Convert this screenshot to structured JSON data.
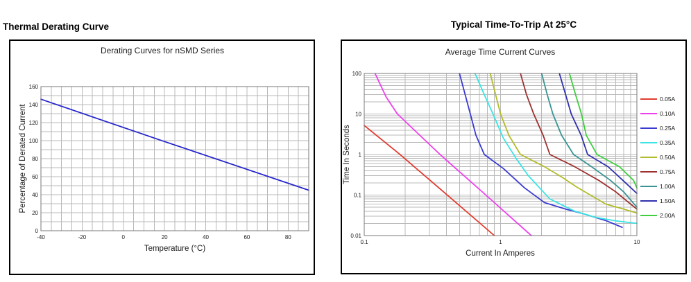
{
  "headings": {
    "left": "Thermal Derating Curve",
    "right": "Typical Time-To-Trip At 25°C"
  },
  "chart_data": [
    {
      "type": "line",
      "title": "Derating Curves for nSMD Series",
      "xlabel": "Temperature (°C)",
      "ylabel": "Percentage of Derated Current",
      "xscale": "linear",
      "yscale": "linear",
      "xlim": [
        -40,
        90
      ],
      "ylim": [
        0,
        160
      ],
      "xticks": [
        -40,
        -20,
        0,
        20,
        40,
        60,
        80
      ],
      "yticks": [
        0,
        20,
        40,
        60,
        80,
        100,
        120,
        140,
        160
      ],
      "x_minor_step": 5,
      "y_minor_step": 10,
      "grid": true,
      "grid_color": "#b8b8b8",
      "frame_color": "#7a7a7a",
      "legend_position": "none",
      "series": [
        {
          "name": "derating",
          "color": "#2525cc",
          "points": [
            [
              -40,
              146
            ],
            [
              20,
              99
            ],
            [
              90,
              45
            ]
          ]
        }
      ]
    },
    {
      "type": "line",
      "title": "Average Time Current Curves",
      "xlabel": "Current In Amperes",
      "ylabel": "Time In Seconds",
      "xscale": "log",
      "yscale": "log",
      "xlim": [
        0.1,
        10
      ],
      "ylim": [
        0.01,
        100
      ],
      "xticks": [
        0.1,
        1,
        10
      ],
      "yticks": [
        100,
        10,
        1,
        0.1,
        0.01
      ],
      "grid": true,
      "grid_color": "#b8b8b8",
      "frame_color": "#7a7a7a",
      "legend_position": "right",
      "series": [
        {
          "name": "0.05A",
          "color": "#e23b2e",
          "points": [
            [
              0.1,
              5.2
            ],
            [
              0.18,
              1.05
            ],
            [
              0.4,
              0.105
            ],
            [
              0.9,
              0.01
            ]
          ]
        },
        {
          "name": "0.10A",
          "color": "#ee3fee",
          "points": [
            [
              0.12,
              100
            ],
            [
              0.145,
              26
            ],
            [
              0.175,
              10
            ],
            [
              0.36,
              1
            ],
            [
              0.78,
              0.1
            ],
            [
              1.68,
              0.01
            ]
          ]
        },
        {
          "name": "0.25A",
          "color": "#3a3ad2",
          "points": [
            [
              0.5,
              100
            ],
            [
              0.55,
              30
            ],
            [
              0.6,
              10
            ],
            [
              0.66,
              3
            ],
            [
              0.76,
              1
            ],
            [
              1.05,
              0.45
            ],
            [
              1.5,
              0.15
            ],
            [
              2.1,
              0.065
            ],
            [
              3,
              0.045
            ],
            [
              4,
              0.035
            ],
            [
              6,
              0.023
            ],
            [
              7.8,
              0.016
            ]
          ]
        },
        {
          "name": "0.35A",
          "color": "#3ae4e4",
          "points": [
            [
              0.65,
              100
            ],
            [
              0.76,
              30
            ],
            [
              0.88,
              10
            ],
            [
              1.05,
              2.5
            ],
            [
              1.3,
              0.8
            ],
            [
              1.6,
              0.3
            ],
            [
              2.3,
              0.08
            ],
            [
              3.5,
              0.04
            ],
            [
              5,
              0.028
            ],
            [
              7,
              0.023
            ],
            [
              10,
              0.02
            ]
          ]
        },
        {
          "name": "0.50A",
          "color": "#b2bc2a",
          "points": [
            [
              0.84,
              100
            ],
            [
              0.92,
              30
            ],
            [
              1.0,
              10
            ],
            [
              1.15,
              3
            ],
            [
              1.4,
              1
            ],
            [
              2.1,
              0.5
            ],
            [
              2.8,
              0.28
            ],
            [
              3.6,
              0.16
            ],
            [
              5.9,
              0.06
            ],
            [
              8,
              0.045
            ],
            [
              10,
              0.036
            ]
          ]
        },
        {
          "name": "0.75A",
          "color": "#9e3030",
          "points": [
            [
              1.4,
              100
            ],
            [
              1.55,
              30
            ],
            [
              1.75,
              10
            ],
            [
              2.05,
              3
            ],
            [
              2.3,
              1
            ],
            [
              3.5,
              0.5
            ],
            [
              5.25,
              0.23
            ],
            [
              7,
              0.12
            ],
            [
              8.5,
              0.07
            ],
            [
              10,
              0.045
            ]
          ]
        },
        {
          "name": "1.00A",
          "color": "#3a9393",
          "points": [
            [
              2.0,
              100
            ],
            [
              2.2,
              30
            ],
            [
              2.42,
              10
            ],
            [
              2.8,
              3
            ],
            [
              3.43,
              1
            ],
            [
              4.65,
              0.5
            ],
            [
              6.4,
              0.23
            ],
            [
              8,
              0.12
            ],
            [
              10,
              0.05
            ]
          ]
        },
        {
          "name": "1.50A",
          "color": "#2f2fae",
          "points": [
            [
              2.7,
              100
            ],
            [
              3.0,
              30
            ],
            [
              3.3,
              10
            ],
            [
              3.9,
              3
            ],
            [
              4.35,
              1
            ],
            [
              6.15,
              0.5
            ],
            [
              8.4,
              0.19
            ],
            [
              10,
              0.11
            ]
          ]
        },
        {
          "name": "2.00A",
          "color": "#3ecf3e",
          "points": [
            [
              3.2,
              100
            ],
            [
              3.55,
              30
            ],
            [
              3.92,
              10
            ],
            [
              4.25,
              3
            ],
            [
              5.1,
              1
            ],
            [
              7.45,
              0.5
            ],
            [
              9.45,
              0.23
            ],
            [
              10,
              0.15
            ]
          ]
        }
      ]
    }
  ]
}
